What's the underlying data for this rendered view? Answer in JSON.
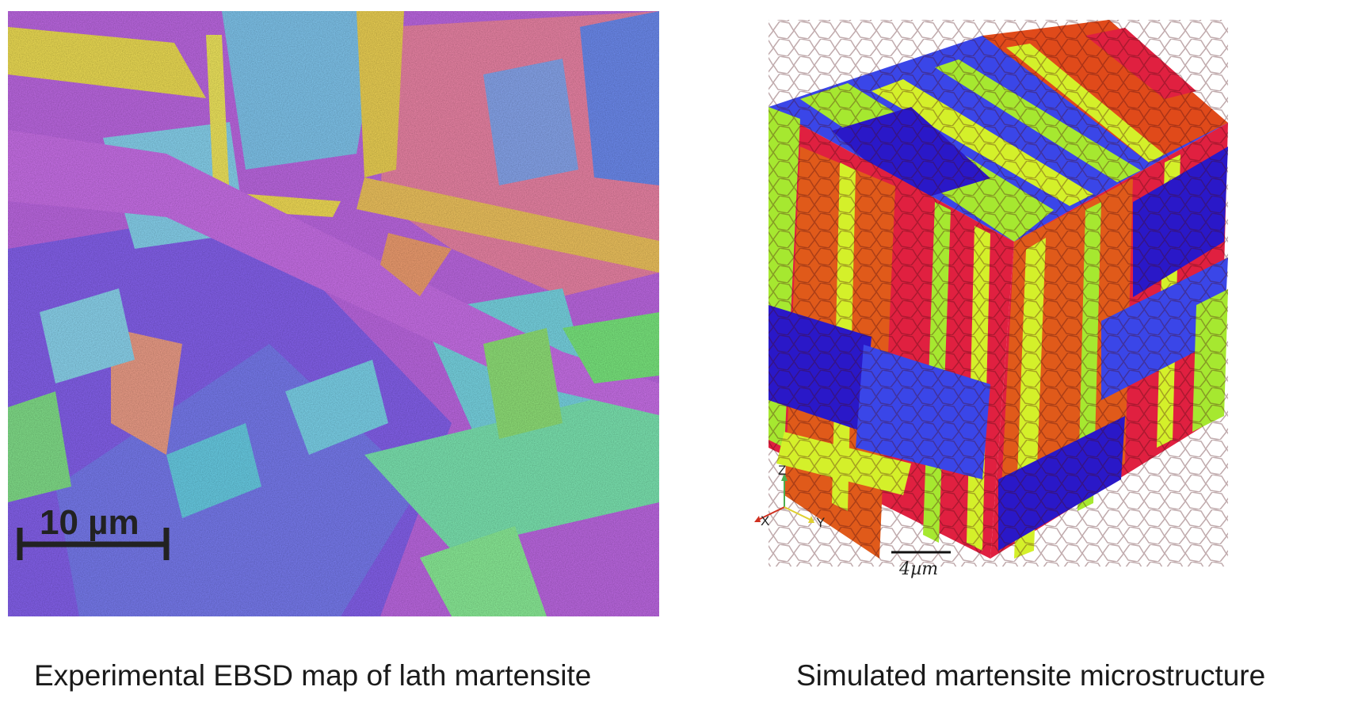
{
  "left_figure": {
    "scale_bar_label": "10 µm",
    "caption": "Experimental EBSD map of lath martensite",
    "colors": {
      "magenta": "#d86de8",
      "violet": "#8a5cf2",
      "blue": "#6f7ff4",
      "cyan": "#7fd8ee",
      "yellow": "#f2e45a",
      "pink": "#f28aa6",
      "green": "#8ef07a",
      "orange": "#f6b070"
    }
  },
  "right_figure": {
    "axis_labels": {
      "z": "Z",
      "x": "X",
      "y": "Y"
    },
    "scale_bar_label": "4µm",
    "caption": "Simulated martensite microstructure",
    "colors": {
      "red": "#e0203a",
      "orange": "#e05a1a",
      "green": "#a6e830",
      "lime": "#d8f02a",
      "blue": "#3a46e8",
      "indigo": "#2a18c8"
    }
  }
}
